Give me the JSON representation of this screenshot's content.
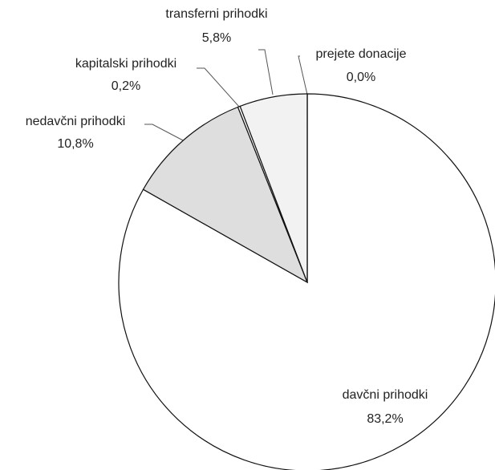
{
  "chart_data": {
    "type": "pie",
    "categories": [
      "davčni prihodki",
      "nedavčni prihodki",
      "kapitalski prihodki",
      "transferni prihodki",
      "prejete donacije"
    ],
    "values": [
      83.2,
      10.8,
      0.2,
      5.8,
      0.0
    ],
    "value_labels": [
      "83,2%",
      "10,8%",
      "0,2%",
      "5,8%",
      "0,0%"
    ],
    "colors": [
      "#ffffff",
      "#dedede",
      "#ffffff",
      "#f2f2f2",
      "#ffffff"
    ]
  }
}
